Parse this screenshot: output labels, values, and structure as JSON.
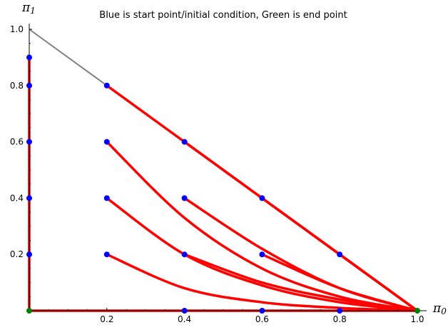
{
  "chart_data": {
    "type": "line",
    "title": "Blue is start point/initial condition, Green is end point",
    "xlabel": "π",
    "xlabel_sub": "0",
    "ylabel": "π",
    "ylabel_sub": "1",
    "xlim": [
      0,
      1.0
    ],
    "ylim": [
      0,
      1.0
    ],
    "xticks": [
      "0.2",
      "0.4",
      "0.6",
      "0.8",
      "1.0"
    ],
    "yticks": [
      "0.2",
      "0.4",
      "0.6",
      "0.8",
      "1.0"
    ],
    "grid": false,
    "colors": {
      "trajectory": "#ff0000",
      "start_point": "#0000ff",
      "end_point": "#008000",
      "boundary": "#808080"
    },
    "boundary_line": {
      "x": [
        0,
        1.0
      ],
      "y": [
        1.0,
        0
      ]
    },
    "series": [
      {
        "x": [
          0.2,
          1.0
        ],
        "y": [
          0.8,
          0
        ]
      },
      {
        "x": [
          0.4,
          1.0
        ],
        "y": [
          0.6,
          0
        ]
      },
      {
        "x": [
          0.6,
          1.0
        ],
        "y": [
          0.4,
          0
        ]
      },
      {
        "x": [
          0.8,
          1.0
        ],
        "y": [
          0.2,
          0
        ]
      },
      {
        "x": [
          0.2,
          0.4,
          0.6,
          0.8,
          1.0
        ],
        "y": [
          0.6,
          0.33,
          0.15,
          0.05,
          0
        ]
      },
      {
        "x": [
          0.4,
          0.6,
          0.8,
          1.0
        ],
        "y": [
          0.4,
          0.22,
          0.08,
          0
        ]
      },
      {
        "x": [
          0.2,
          0.4,
          0.6,
          0.8,
          1.0
        ],
        "y": [
          0.4,
          0.2,
          0.09,
          0.03,
          0
        ]
      },
      {
        "x": [
          0.4,
          0.6,
          0.8,
          1.0
        ],
        "y": [
          0.2,
          0.1,
          0.04,
          0
        ]
      },
      {
        "x": [
          0.2,
          0.4,
          0.6,
          0.8,
          1.0
        ],
        "y": [
          0.2,
          0.08,
          0.03,
          0.01,
          0
        ]
      },
      {
        "x": [
          0.6,
          0.8,
          1.0
        ],
        "y": [
          0.2,
          0.08,
          0
        ]
      },
      {
        "x": [
          0,
          1.0
        ],
        "y": [
          0,
          0
        ]
      },
      {
        "x": [
          0,
          0
        ],
        "y": [
          0.9,
          0
        ]
      }
    ],
    "start_points": {
      "x": [
        0.2,
        0.4,
        0.6,
        0.8,
        0.2,
        0.4,
        0.6,
        0.2,
        0.4,
        0.2,
        0.4,
        0.6,
        0.8,
        0,
        0,
        0,
        0,
        0
      ],
      "y": [
        0.8,
        0.6,
        0.4,
        0.2,
        0.6,
        0.4,
        0.2,
        0.4,
        0.2,
        0.2,
        0,
        0,
        0,
        0.9,
        0.8,
        0.6,
        0.4,
        0.2
      ]
    },
    "end_points": {
      "x": [
        1.0,
        0
      ],
      "y": [
        0,
        0
      ]
    }
  }
}
